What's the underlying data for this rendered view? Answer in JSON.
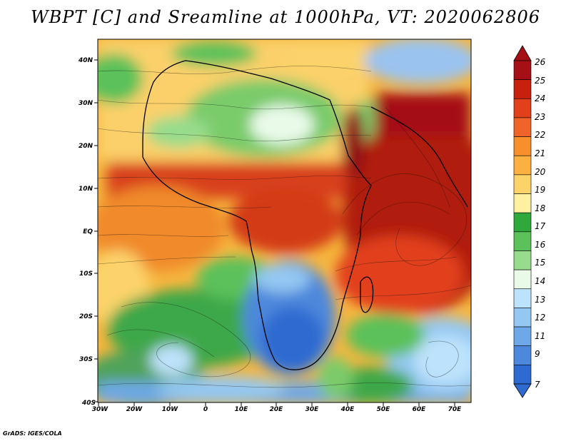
{
  "title": "WBPT [C] and Sreamline at 1000hPa, VT: 2020062806",
  "credit": "GrADS: IGES/COLA",
  "map": {
    "lat_labels": [
      "40N",
      "30N",
      "20N",
      "10N",
      "EQ",
      "10S",
      "20S",
      "30S",
      "40S"
    ],
    "lon_labels": [
      "30W",
      "20W",
      "10W",
      "0",
      "10E",
      "20E",
      "30E",
      "40E",
      "50E",
      "60E",
      "70E"
    ],
    "lon_range": [
      -30,
      76
    ],
    "lat_range": [
      -40,
      45
    ]
  },
  "colorbar": {
    "labels": [
      "26",
      "25",
      "24",
      "23",
      "22",
      "21",
      "20",
      "19",
      "18",
      "17",
      "16",
      "15",
      "14",
      "13",
      "12",
      "11",
      "9",
      "7"
    ],
    "colors": [
      "#a50f15",
      "#c8200e",
      "#e2401a",
      "#f0642a",
      "#f7902b",
      "#fbb040",
      "#fcd36a",
      "#fdf0a0",
      "#2fa83c",
      "#5cc15a",
      "#96dc8c",
      "#e9fae9",
      "#bde2fb",
      "#94c8f2",
      "#6ea8e8",
      "#4e88dc",
      "#2e6ad0"
    ]
  },
  "regions": [
    {
      "name": "tropical-hot-band",
      "color": "#d8401c"
    },
    {
      "name": "arabian-sea-hot",
      "color": "#b01e10"
    },
    {
      "name": "red-sea-hot",
      "color": "#8e0b12"
    },
    {
      "name": "southern-africa-cool",
      "color": "#4e88dc"
    },
    {
      "name": "sahara-green",
      "color": "#7acb6a"
    },
    {
      "name": "south-atlantic-green",
      "color": "#3ea84a"
    }
  ]
}
